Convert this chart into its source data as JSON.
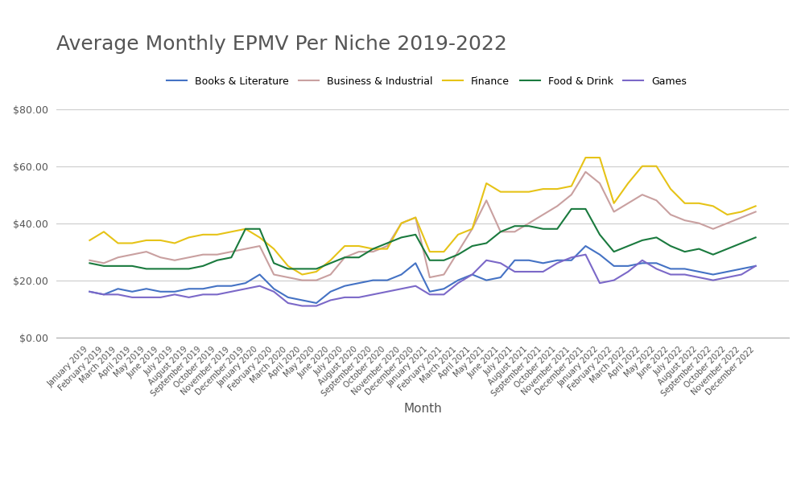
{
  "title": "Average Monthly EPMV Per Niche 2019-2022",
  "xlabel": "Month",
  "ylabel": "",
  "ylim": [
    0,
    80
  ],
  "yticks": [
    0,
    20,
    40,
    60,
    80
  ],
  "background_color": "#ffffff",
  "grid_color": "#cccccc",
  "title_fontsize": 18,
  "months": [
    "January 2019",
    "February 2019",
    "March 2019",
    "April 2019",
    "May 2019",
    "June 2019",
    "July 2019",
    "August 2019",
    "September 2019",
    "October 2019",
    "November 2019",
    "December 2019",
    "January 2020",
    "February 2020",
    "March 2020",
    "April 2020",
    "May 2020",
    "June 2020",
    "July 2020",
    "August 2020",
    "September 2020",
    "October 2020",
    "November 2020",
    "December 2020",
    "January 2021",
    "February 2021",
    "March 2021",
    "April 2021",
    "May 2021",
    "June 2021",
    "July 2021",
    "August 2021",
    "September 2021",
    "October 2021",
    "November 2021",
    "December 2021",
    "January 2022",
    "February 2022",
    "March 2022",
    "April 2022",
    "May 2022",
    "June 2022",
    "July 2022",
    "August 2022",
    "September 2022",
    "October 2022",
    "November 2022",
    "December 2022"
  ],
  "series": {
    "Books & Literature": {
      "color": "#4472c4",
      "values": [
        16,
        15,
        17,
        16,
        17,
        16,
        16,
        17,
        17,
        18,
        18,
        19,
        22,
        17,
        14,
        13,
        12,
        16,
        18,
        19,
        20,
        20,
        22,
        26,
        16,
        17,
        20,
        22,
        20,
        21,
        27,
        27,
        26,
        27,
        27,
        32,
        29,
        25,
        25,
        26,
        26,
        24,
        24,
        23,
        22,
        23,
        24,
        25
      ]
    },
    "Business & Industrial": {
      "color": "#c9a0a0",
      "values": [
        27,
        26,
        28,
        29,
        30,
        28,
        27,
        28,
        29,
        29,
        30,
        31,
        32,
        22,
        21,
        20,
        20,
        22,
        28,
        30,
        30,
        32,
        40,
        42,
        21,
        22,
        30,
        38,
        48,
        37,
        37,
        40,
        43,
        46,
        50,
        58,
        54,
        44,
        47,
        50,
        48,
        43,
        41,
        40,
        38,
        40,
        42,
        44
      ]
    },
    "Finance": {
      "color": "#e6c317",
      "values": [
        34,
        37,
        33,
        33,
        34,
        34,
        33,
        35,
        36,
        36,
        37,
        38,
        35,
        31,
        25,
        22,
        23,
        27,
        32,
        32,
        31,
        31,
        40,
        42,
        30,
        30,
        36,
        38,
        54,
        51,
        51,
        51,
        52,
        52,
        53,
        63,
        63,
        47,
        54,
        60,
        60,
        52,
        47,
        47,
        46,
        43,
        44,
        46
      ]
    },
    "Food & Drink": {
      "color": "#1a7a3e",
      "values": [
        26,
        25,
        25,
        25,
        24,
        24,
        24,
        24,
        25,
        27,
        28,
        38,
        38,
        26,
        24,
        24,
        24,
        26,
        28,
        28,
        31,
        33,
        35,
        36,
        27,
        27,
        29,
        32,
        33,
        37,
        39,
        39,
        38,
        38,
        45,
        45,
        36,
        30,
        32,
        34,
        35,
        32,
        30,
        31,
        29,
        31,
        33,
        35
      ]
    },
    "Games": {
      "color": "#7b68c8",
      "values": [
        16,
        15,
        15,
        14,
        14,
        14,
        15,
        14,
        15,
        15,
        16,
        17,
        18,
        16,
        12,
        11,
        11,
        13,
        14,
        14,
        15,
        16,
        17,
        18,
        15,
        15,
        19,
        22,
        27,
        26,
        23,
        23,
        23,
        26,
        28,
        29,
        19,
        20,
        23,
        27,
        24,
        22,
        22,
        21,
        20,
        21,
        22,
        25
      ]
    }
  }
}
